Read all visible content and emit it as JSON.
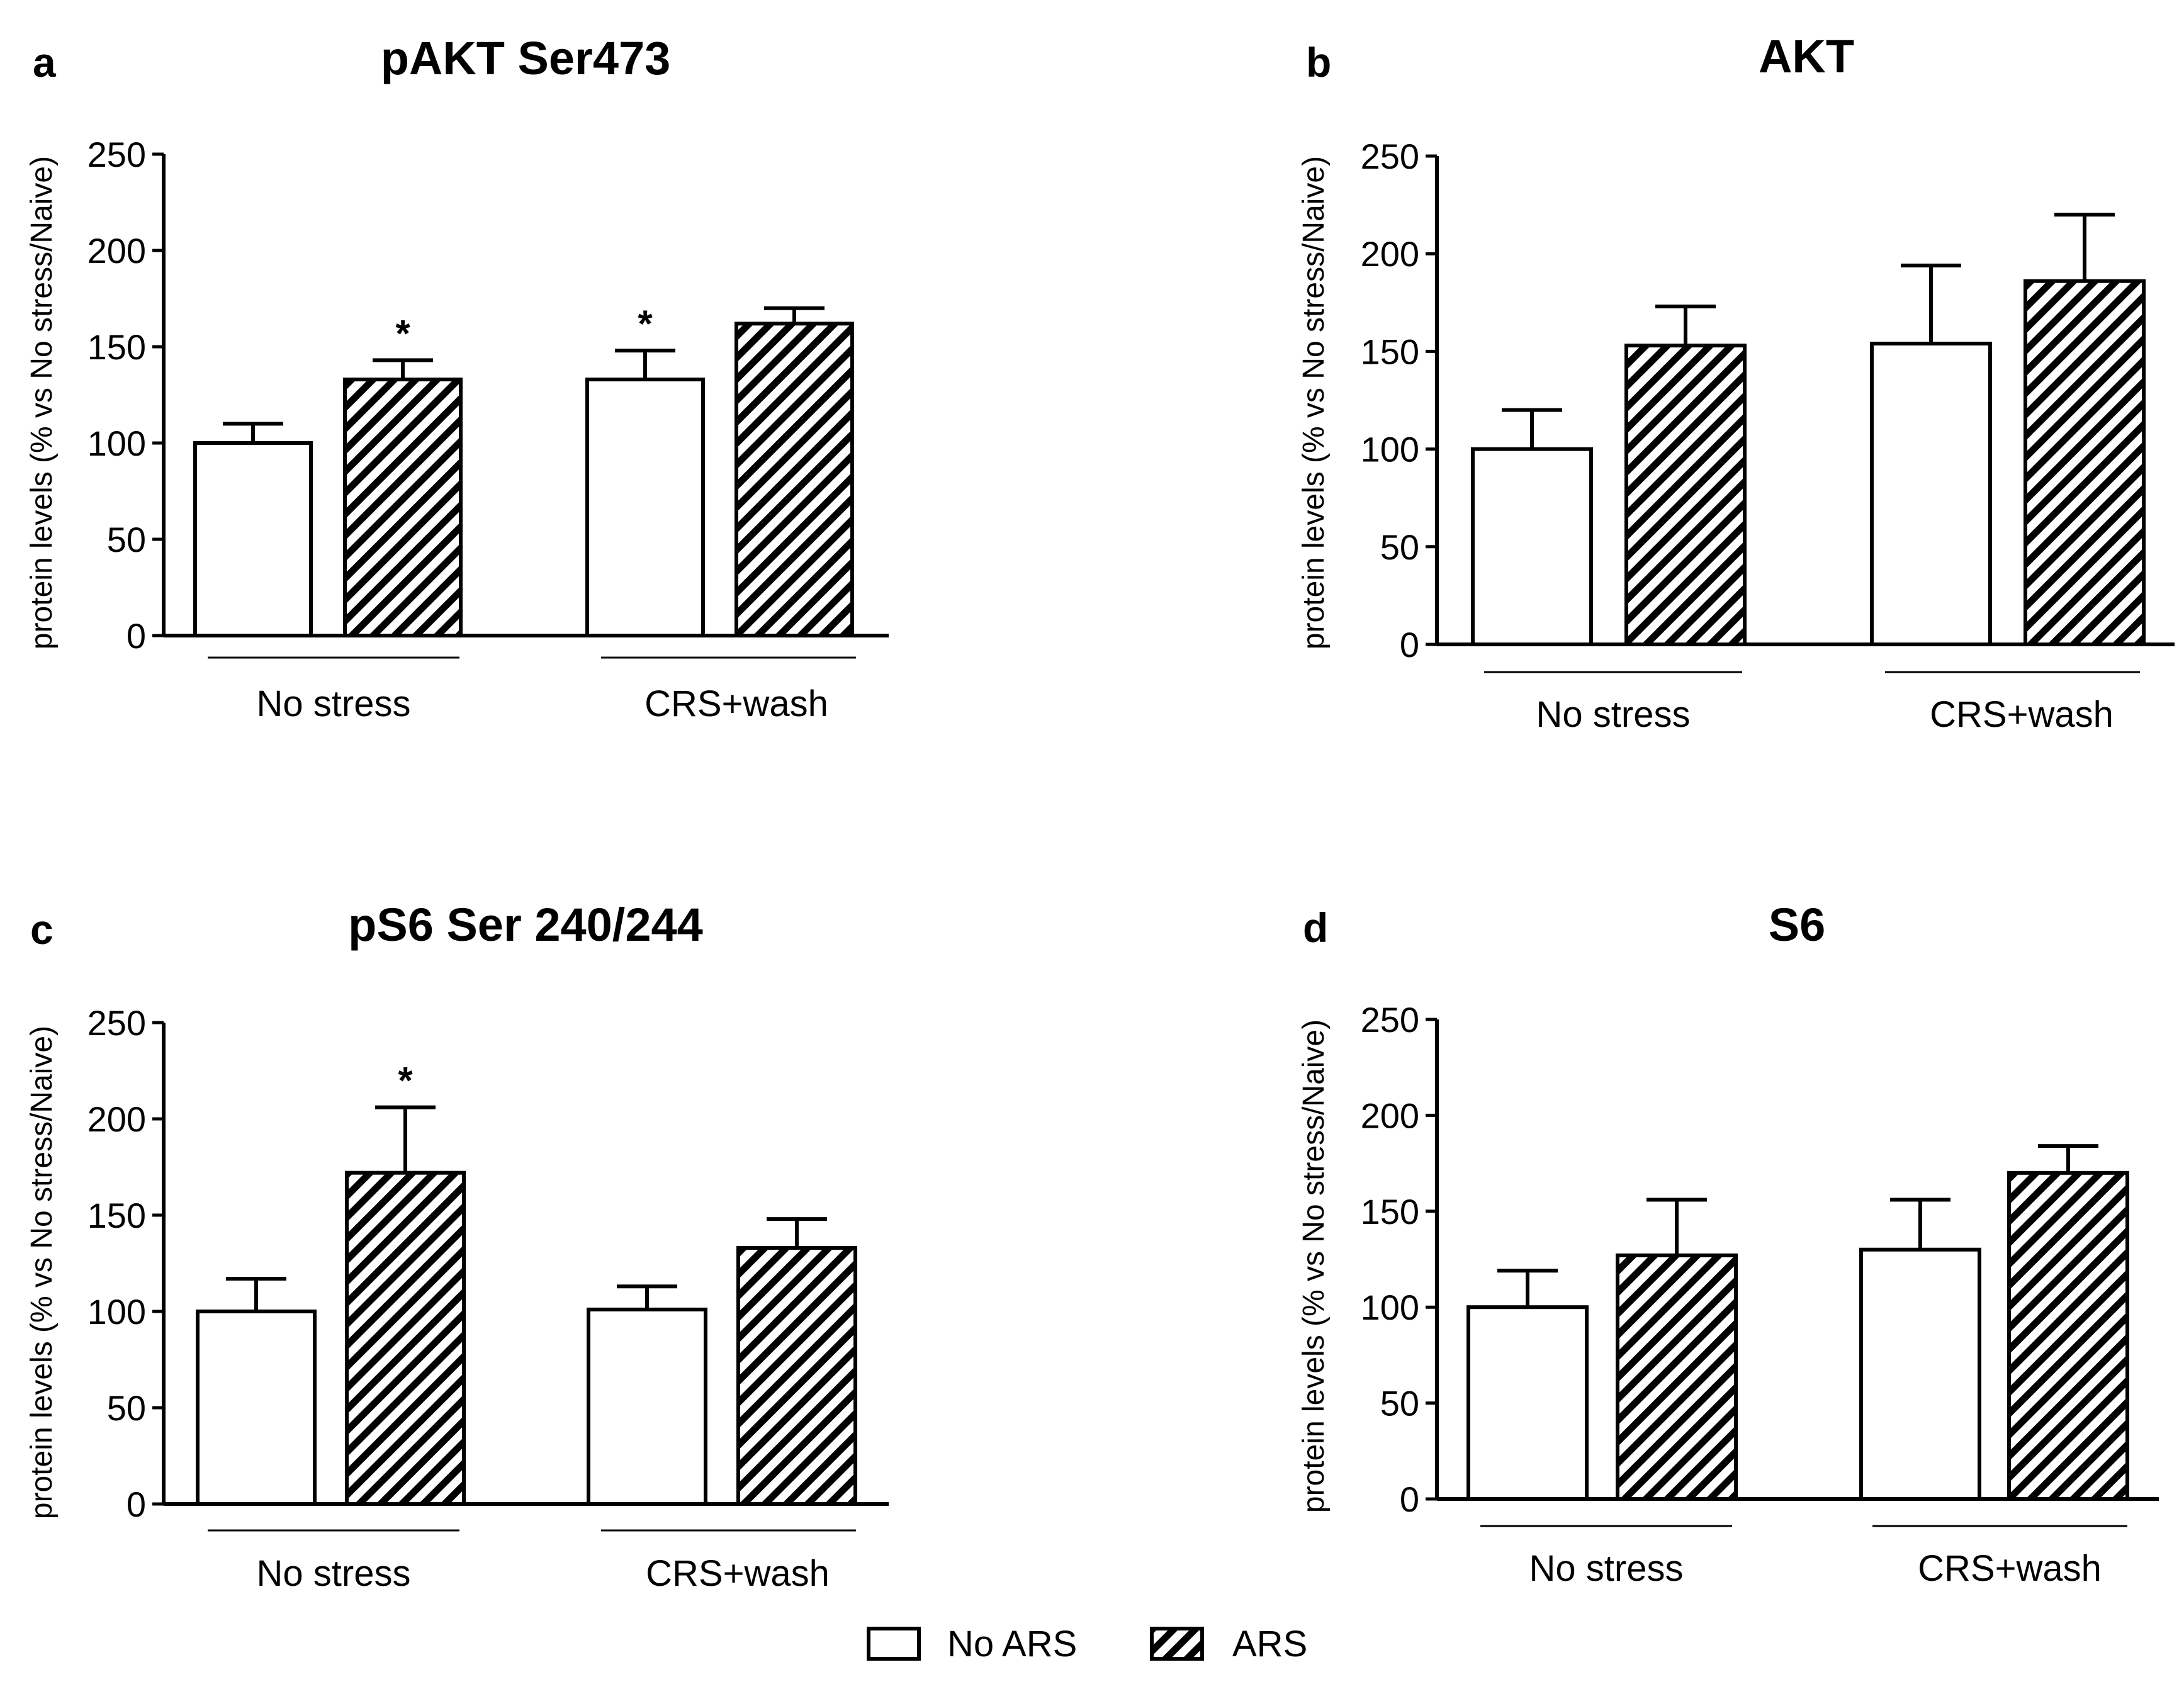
{
  "chart_data": [
    {
      "panel": "a",
      "title": "pAKT Ser473",
      "type": "bar",
      "ylabel": "protein levels (% vs No stress/Naive)",
      "ylim": [
        0,
        250
      ],
      "yticks": [
        "0",
        "50",
        "100",
        "150",
        "200",
        "250"
      ],
      "groups": [
        "No stress",
        "CRS+wash"
      ],
      "series": [
        {
          "name": "No ARS",
          "values": [
            100,
            133
          ],
          "errors": [
            10,
            15
          ],
          "significance": [
            "",
            "*"
          ]
        },
        {
          "name": "ARS",
          "values": [
            133,
            162
          ],
          "errors": [
            10,
            8
          ],
          "significance": [
            "*",
            ""
          ]
        }
      ]
    },
    {
      "panel": "b",
      "title": "AKT",
      "type": "bar",
      "ylabel": "protein levels (% vs No stress/Naive)",
      "ylim": [
        0,
        250
      ],
      "yticks": [
        "0",
        "50",
        "100",
        "150",
        "200",
        "250"
      ],
      "groups": [
        "No stress",
        "CRS+wash"
      ],
      "series": [
        {
          "name": "No ARS",
          "values": [
            100,
            154
          ],
          "errors": [
            20,
            40
          ],
          "significance": [
            "",
            ""
          ]
        },
        {
          "name": "ARS",
          "values": [
            153,
            186
          ],
          "errors": [
            20,
            34
          ],
          "significance": [
            "",
            ""
          ]
        }
      ]
    },
    {
      "panel": "c",
      "title": "pS6 Ser 240/244",
      "type": "bar",
      "ylabel": "protein levels (% vs No stress/Naive)",
      "ylim": [
        0,
        250
      ],
      "yticks": [
        "0",
        "50",
        "100",
        "150",
        "200",
        "250"
      ],
      "groups": [
        "No stress",
        "CRS+wash"
      ],
      "series": [
        {
          "name": "No ARS",
          "values": [
            100,
            101
          ],
          "errors": [
            17,
            12
          ],
          "significance": [
            "",
            ""
          ]
        },
        {
          "name": "ARS",
          "values": [
            172,
            133
          ],
          "errors": [
            34,
            15
          ],
          "significance": [
            "*",
            ""
          ]
        }
      ]
    },
    {
      "panel": "d",
      "title": "S6",
      "type": "bar",
      "ylabel": "protein levels (% vs No stress/Naive)",
      "ylim": [
        0,
        250
      ],
      "yticks": [
        "0",
        "50",
        "100",
        "150",
        "200",
        "250"
      ],
      "groups": [
        "No stress",
        "CRS+wash"
      ],
      "series": [
        {
          "name": "No ARS",
          "values": [
            100,
            130
          ],
          "errors": [
            19,
            26
          ],
          "significance": [
            "",
            ""
          ]
        },
        {
          "name": "ARS",
          "values": [
            127,
            170
          ],
          "errors": [
            29,
            14
          ],
          "significance": [
            "",
            ""
          ]
        }
      ]
    }
  ],
  "legend": [
    {
      "label": "No ARS",
      "pattern": "open"
    },
    {
      "label": "ARS",
      "pattern": "hatched"
    }
  ],
  "colors": {
    "axis": "#000000",
    "background": "#ffffff",
    "bar_open": "#ffffff"
  }
}
